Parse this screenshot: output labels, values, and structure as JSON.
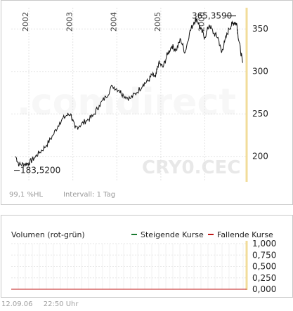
{
  "chart_data": [
    {
      "type": "line",
      "watermark": ".comdirect",
      "symbol": "CRY0.CEC",
      "years": [
        "2002",
        "2003",
        "2004",
        "2005",
        "2006"
      ],
      "y_ticks": [
        "350",
        "300",
        "250",
        "200"
      ],
      "ylim": [
        170,
        375
      ],
      "max_label": "365,3590",
      "min_label": "183,5200",
      "hl_info": "99,1 %HL",
      "interval": "Intervall: 1 Tag",
      "series": [
        {
          "values": [
            [
              2001.7,
              200
            ],
            [
              2001.78,
              190
            ],
            [
              2001.9,
              191
            ],
            [
              2002.0,
              192
            ],
            [
              2002.12,
              198
            ],
            [
              2002.25,
              205
            ],
            [
              2002.4,
              213
            ],
            [
              2002.55,
              225
            ],
            [
              2002.7,
              240
            ],
            [
              2002.85,
              248
            ],
            [
              2002.95,
              250
            ],
            [
              2003.05,
              233
            ],
            [
              2003.15,
              236
            ],
            [
              2003.3,
              242
            ],
            [
              2003.45,
              247
            ],
            [
              2003.6,
              260
            ],
            [
              2003.75,
              270
            ],
            [
              2003.9,
              283
            ],
            [
              2004.05,
              278
            ],
            [
              2004.15,
              272
            ],
            [
              2004.3,
              268
            ],
            [
              2004.45,
              275
            ],
            [
              2004.6,
              285
            ],
            [
              2004.72,
              289
            ],
            [
              2004.8,
              296
            ],
            [
              2004.88,
              293
            ],
            [
              2004.95,
              310
            ],
            [
              2005.05,
              305
            ],
            [
              2005.15,
              320
            ],
            [
              2005.25,
              330
            ],
            [
              2005.35,
              325
            ],
            [
              2005.45,
              338
            ],
            [
              2005.55,
              322
            ],
            [
              2005.65,
              345
            ],
            [
              2005.75,
              358
            ],
            [
              2005.82,
              362
            ],
            [
              2005.9,
              350
            ],
            [
              2006.0,
              340
            ],
            [
              2006.1,
              355
            ],
            [
              2006.2,
              345
            ],
            [
              2006.3,
              340
            ],
            [
              2006.38,
              322
            ],
            [
              2006.45,
              335
            ],
            [
              2006.55,
              350
            ],
            [
              2006.62,
              356
            ],
            [
              2006.68,
              358
            ],
            [
              2006.73,
              355
            ],
            [
              2006.75,
              345
            ],
            [
              2006.81,
              325
            ],
            [
              2006.86,
              310
            ]
          ]
        }
      ]
    },
    {
      "type": "bar",
      "title": "Volumen (rot-grün)",
      "legend": [
        {
          "label": "Steigende Kurse",
          "color": "#1a7a30"
        },
        {
          "label": "Fallende Kurse",
          "color": "#c01818"
        }
      ],
      "y_ticks": [
        "1,000",
        "0,750",
        "0,500",
        "0,250",
        "0,000"
      ],
      "ylim": [
        0,
        1
      ],
      "values": []
    }
  ],
  "footer": {
    "date": "12.09.06",
    "time": "22:50 Uhr"
  }
}
